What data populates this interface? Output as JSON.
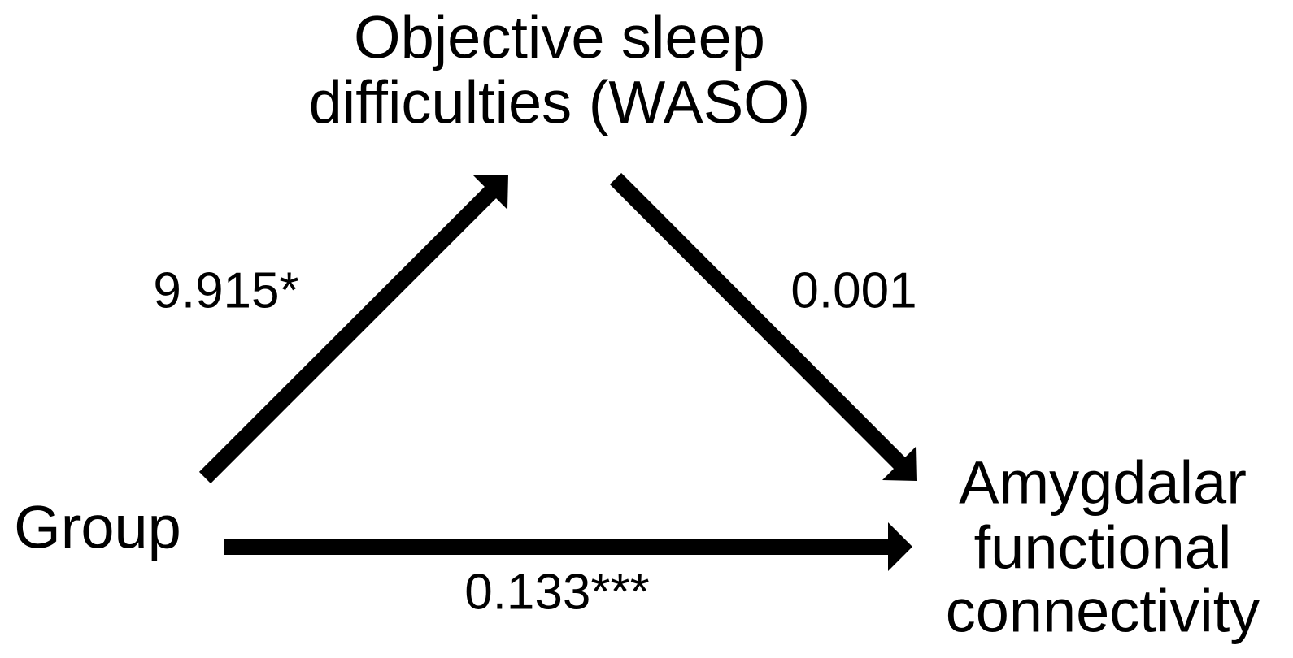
{
  "nodes": [
    {
      "lines": [
        "Objective sleep",
        "difficulties (WASO)"
      ]
    },
    {
      "lines": [
        "Group"
      ]
    },
    {
      "lines": [
        "Amygdalar",
        "functional",
        "connectivity"
      ]
    }
  ],
  "edges": [
    {
      "label": "9.915*"
    },
    {
      "label": "0.001"
    },
    {
      "label": "0.133***"
    }
  ]
}
